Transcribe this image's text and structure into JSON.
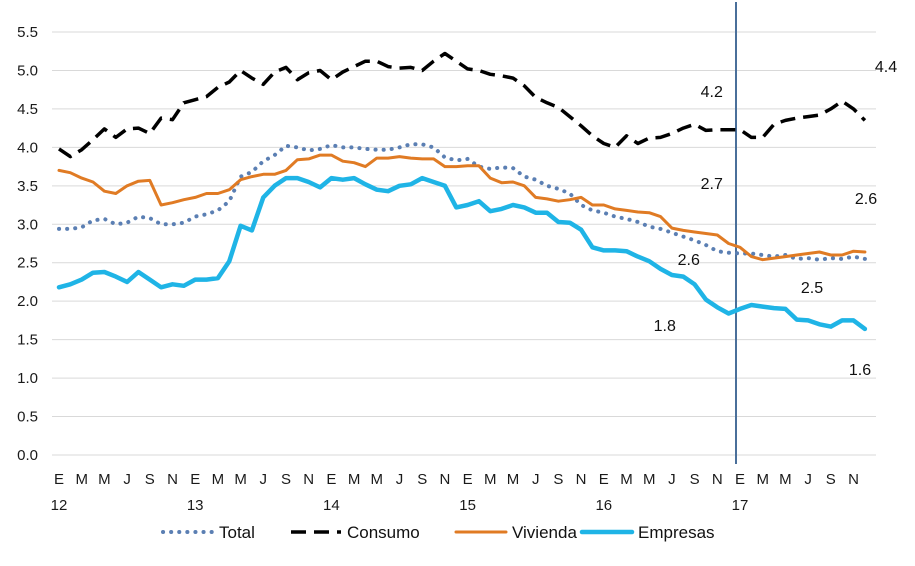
{
  "chart_data": {
    "type": "line",
    "title": "",
    "xlabel": "",
    "ylabel": "",
    "ylim": [
      0,
      5.5
    ],
    "yticks": [
      "0.0",
      "0.5",
      "1.0",
      "1.5",
      "2.0",
      "2.5",
      "3.0",
      "3.5",
      "4.0",
      "4.5",
      "5.0",
      "5.5"
    ],
    "x_month_labels": [
      "E",
      "M",
      "M",
      "J",
      "S",
      "N",
      "E",
      "M",
      "M",
      "J",
      "S",
      "N",
      "E",
      "M",
      "M",
      "J",
      "S",
      "N",
      "E",
      "M",
      "M",
      "J",
      "S",
      "N",
      "E",
      "M",
      "M",
      "J",
      "S",
      "N",
      "E",
      "M",
      "M",
      "J",
      "S",
      "N"
    ],
    "x_year_labels": [
      {
        "label": "12",
        "index": 0
      },
      {
        "label": "13",
        "index": 12
      },
      {
        "label": "14",
        "index": 24
      },
      {
        "label": "15",
        "index": 36
      },
      {
        "label": "16",
        "index": 48
      },
      {
        "label": "17",
        "index": 60
      }
    ],
    "vertical_line_index": 60,
    "vertical_line_color": "#4a6f9a",
    "series": [
      {
        "name": "Total",
        "color": "#5b7fb3",
        "style": "dotted",
        "values": [
          2.94,
          2.94,
          2.96,
          3.05,
          3.07,
          3.0,
          3.02,
          3.1,
          3.08,
          3.0,
          3.0,
          3.02,
          3.1,
          3.13,
          3.18,
          3.3,
          3.62,
          3.68,
          3.82,
          3.9,
          4.02,
          4.0,
          3.96,
          3.98,
          4.03,
          4.0,
          4.0,
          3.98,
          3.97,
          3.97,
          4.0,
          4.04,
          4.04,
          4.0,
          3.87,
          3.83,
          3.85,
          3.75,
          3.72,
          3.74,
          3.73,
          3.62,
          3.58,
          3.5,
          3.46,
          3.4,
          3.25,
          3.18,
          3.15,
          3.1,
          3.07,
          3.03,
          2.97,
          2.94,
          2.89,
          2.84,
          2.79,
          2.73,
          2.65,
          2.63,
          2.62,
          2.62,
          2.6,
          2.58,
          2.6,
          2.55,
          2.56,
          2.54,
          2.56,
          2.55,
          2.58,
          2.55
        ]
      },
      {
        "name": "Consumo",
        "color": "#000000",
        "style": "dashed",
        "values": [
          3.98,
          3.88,
          3.97,
          4.1,
          4.24,
          4.13,
          4.24,
          4.25,
          4.18,
          4.38,
          4.36,
          4.58,
          4.62,
          4.66,
          4.78,
          4.85,
          5.0,
          4.9,
          4.82,
          4.98,
          5.04,
          4.88,
          4.97,
          5.0,
          4.88,
          4.98,
          5.05,
          5.12,
          5.12,
          5.05,
          5.03,
          5.04,
          5.0,
          5.12,
          5.22,
          5.12,
          5.02,
          5.0,
          4.95,
          4.93,
          4.9,
          4.8,
          4.65,
          4.58,
          4.52,
          4.4,
          4.28,
          4.15,
          4.05,
          4.0,
          4.15,
          4.05,
          4.12,
          4.13,
          4.18,
          4.25,
          4.3,
          4.22,
          4.23,
          4.23,
          4.23,
          4.13,
          4.13,
          4.3,
          4.35,
          4.38,
          4.4,
          4.42,
          4.5,
          4.6,
          4.5,
          4.35
        ]
      },
      {
        "name": "Vivienda",
        "color": "#e07b24",
        "style": "solid",
        "values": [
          3.7,
          3.67,
          3.6,
          3.55,
          3.43,
          3.4,
          3.5,
          3.56,
          3.57,
          3.25,
          3.28,
          3.32,
          3.35,
          3.4,
          3.4,
          3.45,
          3.58,
          3.62,
          3.65,
          3.65,
          3.7,
          3.84,
          3.85,
          3.9,
          3.9,
          3.82,
          3.8,
          3.75,
          3.86,
          3.86,
          3.88,
          3.86,
          3.85,
          3.85,
          3.75,
          3.75,
          3.76,
          3.76,
          3.6,
          3.54,
          3.55,
          3.5,
          3.35,
          3.33,
          3.3,
          3.32,
          3.35,
          3.25,
          3.25,
          3.2,
          3.18,
          3.16,
          3.15,
          3.1,
          2.95,
          2.92,
          2.9,
          2.88,
          2.86,
          2.75,
          2.7,
          2.58,
          2.54,
          2.56,
          2.58,
          2.6,
          2.62,
          2.64,
          2.6,
          2.6,
          2.65,
          2.64
        ]
      },
      {
        "name": "Empresas",
        "color": "#1fb4e6",
        "style": "solid",
        "values": [
          2.18,
          2.22,
          2.28,
          2.37,
          2.38,
          2.32,
          2.25,
          2.38,
          2.28,
          2.18,
          2.22,
          2.2,
          2.28,
          2.28,
          2.3,
          2.52,
          2.98,
          2.92,
          3.35,
          3.5,
          3.6,
          3.6,
          3.55,
          3.48,
          3.6,
          3.58,
          3.6,
          3.52,
          3.45,
          3.43,
          3.5,
          3.52,
          3.6,
          3.55,
          3.5,
          3.22,
          3.25,
          3.3,
          3.17,
          3.2,
          3.25,
          3.22,
          3.15,
          3.15,
          3.03,
          3.02,
          2.93,
          2.7,
          2.66,
          2.66,
          2.65,
          2.58,
          2.52,
          2.42,
          2.34,
          2.32,
          2.22,
          2.02,
          1.92,
          1.84,
          1.9,
          1.95,
          1.93,
          1.91,
          1.9,
          1.76,
          1.75,
          1.7,
          1.67,
          1.75,
          1.75,
          1.64
        ]
      }
    ],
    "annotations": [
      {
        "text": "4.2",
        "series": "Consumo",
        "index": 59
      },
      {
        "text": "4.4",
        "series": "Consumo",
        "index": 71
      },
      {
        "text": "2.7",
        "series": "Vivienda",
        "index": 59
      },
      {
        "text": "2.6",
        "series": "Vivienda",
        "index": 71
      },
      {
        "text": "2.6",
        "series": "Total",
        "index": 59
      },
      {
        "text": "2.5",
        "series": "Total",
        "index": 71
      },
      {
        "text": "1.8",
        "series": "Empresas",
        "index": 59
      },
      {
        "text": "1.6",
        "series": "Empresas",
        "index": 71
      }
    ],
    "legend": {
      "position": "bottom",
      "items": [
        "Total",
        "Consumo",
        "Vivienda",
        "Empresas"
      ]
    }
  }
}
